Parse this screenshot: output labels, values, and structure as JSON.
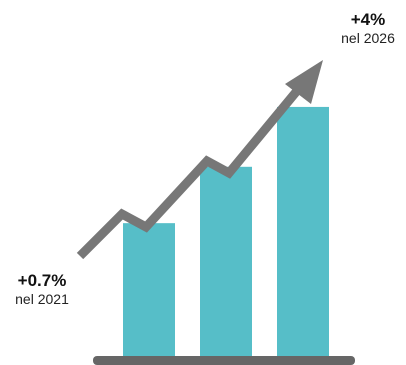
{
  "chart_data": {
    "type": "bar",
    "categories": [
      "",
      "",
      ""
    ],
    "values": [
      1.9,
      2.7,
      3.55
    ],
    "ylim": [
      0,
      4.5
    ],
    "title": "",
    "xlabel": "",
    "ylabel": "",
    "grid": false,
    "legend": "none",
    "bar_color": "#56bec8",
    "baseline_color": "#666666",
    "trend": {
      "color": "#777777",
      "start": {
        "value": "+0.7%",
        "caption": "nel 2021"
      },
      "end": {
        "value": "+4%",
        "caption": "nel 2026"
      }
    }
  }
}
